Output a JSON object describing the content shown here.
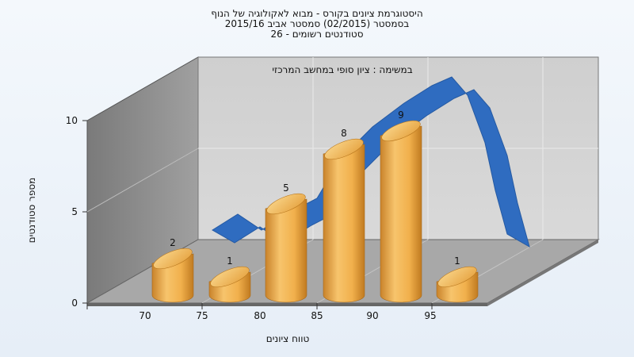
{
  "chart_data": {
    "type": "bar",
    "title_lines": [
      "היסטוגרמת ציונים בקורס - מבוא לאקולוגיה של הנוף",
      "בסמסטר   (02/2015)  סמסטר אביב 2015/16",
      "סטודנטים רשומים - 26"
    ],
    "annotation": "במשימה : ציון סופי במחשב המרכזי",
    "xlabel": "טווח ציונים",
    "ylabel": "מספר סטודנטים",
    "x_ticks": [
      "70",
      "75",
      "80",
      "85",
      "90",
      "95"
    ],
    "y_ticks": [
      "0",
      "5",
      "10"
    ],
    "ylim": [
      0,
      10
    ],
    "categories": [
      "70",
      "75",
      "80",
      "85",
      "90",
      "95"
    ],
    "values": [
      2,
      1,
      5,
      8,
      9,
      1
    ],
    "bar_labels": [
      "2",
      "1",
      "5",
      "8",
      "9",
      "1"
    ],
    "curve": {
      "type": "ribbon-3d",
      "shape": "normal"
    },
    "grid": true,
    "colors": {
      "bar": "#f2b44f",
      "bar_dark": "#c07a20",
      "bar_top": "#f7c66a",
      "curve": "#2f6cc0",
      "back_wall": "#d0d0d0",
      "left_wall": "#8a8a8a",
      "floor": "#a7a7a7"
    }
  }
}
